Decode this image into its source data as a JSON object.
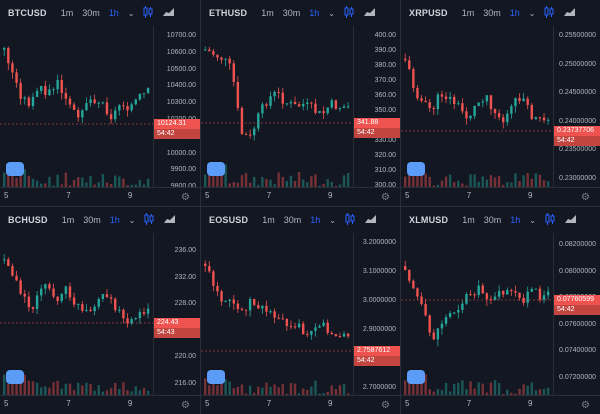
{
  "toolbar": {
    "tf1": "1m",
    "tf2": "30m",
    "tf3": "1h"
  },
  "colors": {
    "up": "#26a69a",
    "down": "#ef5350",
    "bg": "#131722",
    "accent": "#2962ff"
  },
  "icons": [
    "chevron-down-icon",
    "candles-icon",
    "area-chart-icon",
    "settings-gear-icon",
    "tradingview-logo-icon"
  ],
  "time_labels": [
    "5",
    "7",
    "9"
  ],
  "panes": [
    {
      "symbol": "BTCUSD",
      "prices": [
        "10700.00",
        "10600.00",
        "10500.00",
        "10400.00",
        "10300.00",
        "10200.00",
        "10100.00",
        "10000.00",
        "9900.00",
        "9800.00"
      ],
      "last_price": "10124.31",
      "countdown": "54:42"
    },
    {
      "symbol": "ETHUSD",
      "prices": [
        "400.00",
        "390.00",
        "380.00",
        "370.00",
        "360.00",
        "350.00",
        "340.00",
        "330.00",
        "320.00",
        "310.00",
        "300.00"
      ],
      "last_price": "341.88",
      "countdown": "54:42"
    },
    {
      "symbol": "XRPUSD",
      "prices": [
        "0.25500000",
        "0.25000000",
        "0.24500000",
        "0.24000000",
        "0.23500000",
        "0.23000000"
      ],
      "last_price": "0.23737706",
      "countdown": "54:42"
    },
    {
      "symbol": "BCHUSD",
      "prices": [
        "236.00",
        "232.00",
        "228.00",
        "224.00",
        "220.00",
        "216.00"
      ],
      "last_price": "224.43",
      "countdown": "54:43"
    },
    {
      "symbol": "EOSUSD",
      "prices": [
        "3.2000000",
        "3.1000000",
        "3.0000000",
        "2.9000000",
        "2.8000000",
        "2.7000000"
      ],
      "last_price": "2.7587612",
      "countdown": "54:42"
    },
    {
      "symbol": "XLMUSD",
      "prices": [
        "0.08200000",
        "0.08000000",
        "0.07800000",
        "0.07600000",
        "0.07400000",
        "0.07200000"
      ],
      "last_price": "0.07760599",
      "countdown": "54:42"
    }
  ]
}
